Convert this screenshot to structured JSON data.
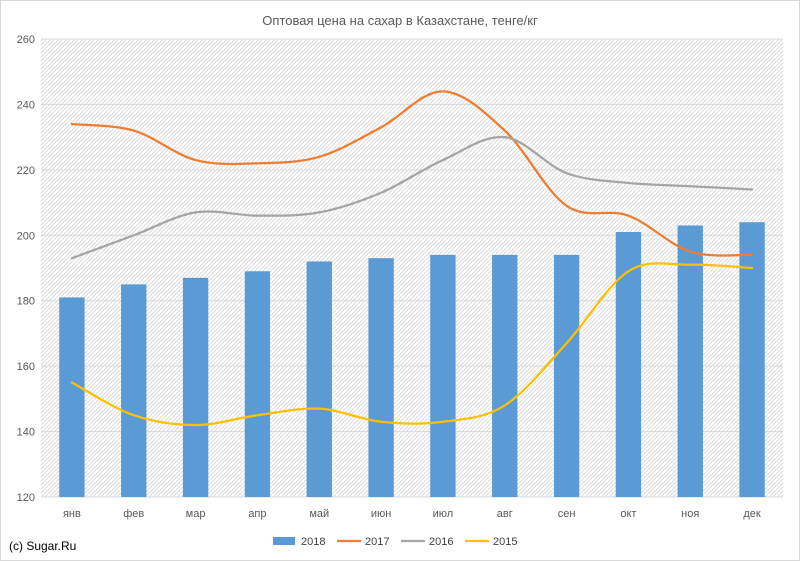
{
  "chart_data": {
    "type": "bar",
    "title": "Оптовая цена на сахар в Казахстане, тенге/кг",
    "categories": [
      "янв",
      "фев",
      "мар",
      "апр",
      "май",
      "июн",
      "июл",
      "авг",
      "сен",
      "окт",
      "ноя",
      "дек"
    ],
    "ylim": [
      120,
      260
    ],
    "yticks": [
      120,
      140,
      160,
      180,
      200,
      220,
      240,
      260
    ],
    "grid": true,
    "legend": "bottom",
    "series": [
      {
        "name": "2018",
        "type": "bar",
        "color": "#5b9bd5",
        "values": [
          181,
          185,
          187,
          189,
          192,
          193,
          194,
          194,
          194,
          201,
          203,
          204
        ]
      },
      {
        "name": "2017",
        "type": "line",
        "color": "#ed7d31",
        "values": [
          234,
          232,
          223,
          222,
          224,
          233,
          244,
          232,
          209,
          206,
          195,
          194
        ]
      },
      {
        "name": "2016",
        "type": "line",
        "color": "#a5a5a5",
        "values": [
          193,
          200,
          207,
          206,
          207,
          213,
          223,
          230,
          219,
          216,
          215,
          214
        ]
      },
      {
        "name": "2015",
        "type": "line",
        "color": "#ffc000",
        "values": [
          155,
          145,
          142,
          145,
          147,
          143,
          143,
          148,
          167,
          189,
          191,
          190
        ]
      }
    ]
  },
  "credit": "(c) Sugar.Ru"
}
